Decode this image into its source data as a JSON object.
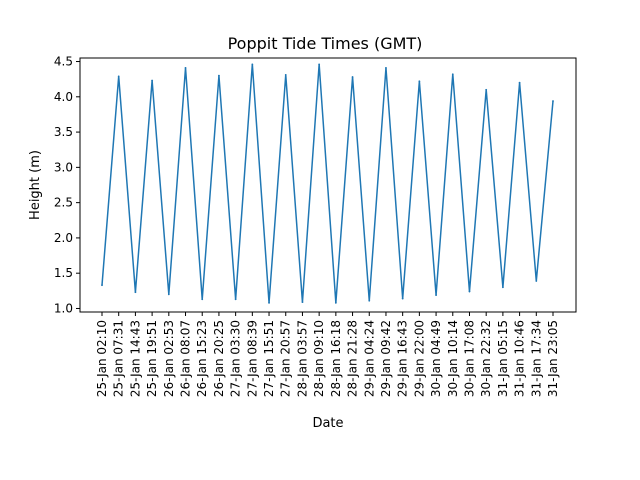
{
  "chart_data": {
    "type": "line",
    "title": "Poppit Tide Times (GMT)",
    "xlabel": "Date",
    "ylabel": "Height (m)",
    "ylim": [
      0.95,
      4.55
    ],
    "yticks": [
      "1.0",
      "1.5",
      "2.0",
      "2.5",
      "3.0",
      "3.5",
      "4.0",
      "4.5"
    ],
    "grid": false,
    "legend": "none",
    "line_color": "#1f77b4",
    "categories": [
      "25-Jan 02:10",
      "25-Jan 07:31",
      "25-Jan 14:43",
      "25-Jan 19:51",
      "26-Jan 02:53",
      "26-Jan 08:07",
      "26-Jan 15:23",
      "26-Jan 20:25",
      "27-Jan 03:30",
      "27-Jan 08:39",
      "27-Jan 15:51",
      "27-Jan 20:57",
      "28-Jan 03:57",
      "28-Jan 09:10",
      "28-Jan 16:18",
      "28-Jan 21:28",
      "29-Jan 04:24",
      "29-Jan 09:42",
      "29-Jan 16:43",
      "29-Jan 22:00",
      "30-Jan 04:49",
      "30-Jan 10:14",
      "30-Jan 17:08",
      "30-Jan 22:32",
      "31-Jan 05:15",
      "31-Jan 10:46",
      "31-Jan 17:34",
      "31-Jan 23:05"
    ],
    "series": [
      {
        "values": [
          1.33,
          4.29,
          1.23,
          4.23,
          1.2,
          4.41,
          1.13,
          4.3,
          1.13,
          4.46,
          1.08,
          4.31,
          1.09,
          4.46,
          1.08,
          4.28,
          1.11,
          4.41,
          1.14,
          4.22,
          1.19,
          4.32,
          1.24,
          4.1,
          1.3,
          4.2,
          1.39,
          3.94
        ]
      }
    ]
  }
}
